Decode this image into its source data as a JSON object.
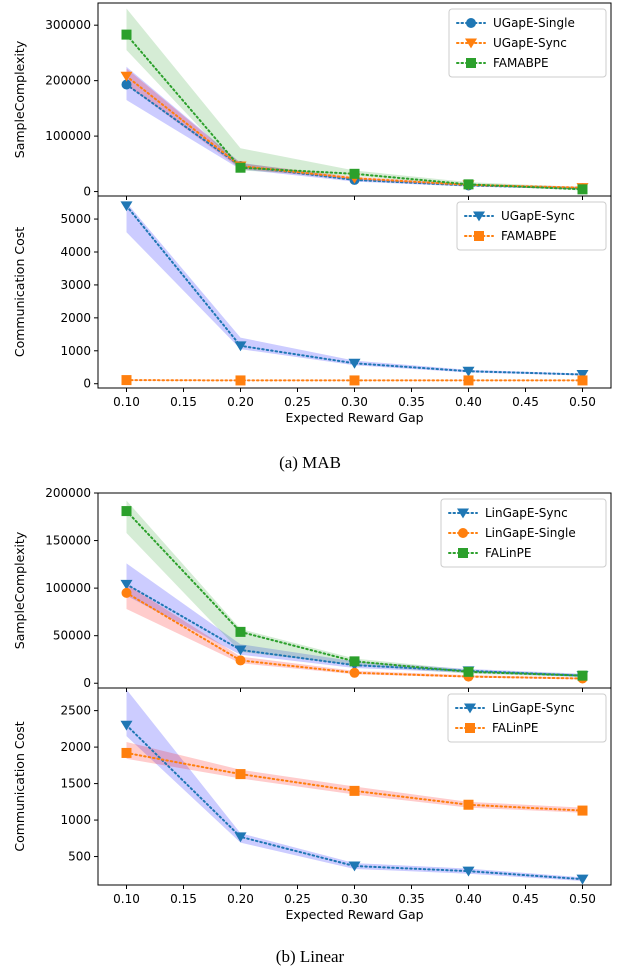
{
  "captions": {
    "a": "(a) MAB",
    "b": "(b) Linear"
  },
  "chart_data": [
    {
      "type": "line",
      "ylabel": "SampleComplexity",
      "xlabel": "",
      "x": [
        0.1,
        0.2,
        0.3,
        0.4,
        0.5
      ],
      "xlim": [
        0.075,
        0.525
      ],
      "ylim": [
        -8000,
        340000
      ],
      "yticks": [
        0,
        100000,
        200000,
        300000
      ],
      "ytick_labels": [
        "0",
        "100000",
        "200000",
        "300000"
      ],
      "grid": false,
      "legend": "top-right",
      "series": [
        {
          "name": "UGapE-Single",
          "color": "#1f77b4",
          "band_color": "#0000ff",
          "marker": "circle",
          "values": [
            193000,
            46000,
            21000,
            11000,
            6000
          ],
          "lower": [
            165000,
            40000,
            18000,
            9000,
            4000
          ],
          "upper": [
            225000,
            52000,
            24000,
            13000,
            8000
          ]
        },
        {
          "name": "UGapE-Sync",
          "color": "#ff7f0e",
          "band_color": "#ff0000",
          "marker": "triangle-down",
          "values": [
            208000,
            46000,
            24000,
            12000,
            7000
          ],
          "lower": [
            192000,
            41000,
            21000,
            10000,
            5000
          ],
          "upper": [
            222000,
            51000,
            27000,
            14000,
            9000
          ]
        },
        {
          "name": "FAMABPE",
          "color": "#2ca02c",
          "band_color": "#2ca02c",
          "marker": "square",
          "values": [
            283000,
            43000,
            32000,
            13000,
            4000
          ],
          "lower": [
            255000,
            38000,
            28000,
            11000,
            2000
          ],
          "upper": [
            330000,
            78000,
            38000,
            17000,
            8000
          ]
        }
      ]
    },
    {
      "type": "line",
      "ylabel": "Communication Cost",
      "xlabel": "Expected Reward Gap",
      "x": [
        0.1,
        0.2,
        0.3,
        0.4,
        0.5
      ],
      "xlim": [
        0.075,
        0.525
      ],
      "ylim": [
        -130,
        5700
      ],
      "yticks": [
        0,
        1000,
        2000,
        3000,
        4000,
        5000
      ],
      "ytick_labels": [
        "0",
        "1000",
        "2000",
        "3000",
        "4000",
        "5000"
      ],
      "xticks": [
        0.1,
        0.15,
        0.2,
        0.25,
        0.3,
        0.35,
        0.4,
        0.45,
        0.5
      ],
      "xtick_labels": [
        "0.10",
        "0.15",
        "0.20",
        "0.25",
        "0.30",
        "0.35",
        "0.40",
        "0.45",
        "0.50"
      ],
      "grid": false,
      "legend": "top-right",
      "series": [
        {
          "name": "UGapE-Sync",
          "color": "#1f77b4",
          "band_color": "#0000ff",
          "marker": "triangle-down",
          "values": [
            5400,
            1150,
            620,
            380,
            280
          ],
          "lower": [
            4600,
            1050,
            560,
            340,
            250
          ],
          "upper": [
            5500,
            1400,
            700,
            420,
            310
          ]
        },
        {
          "name": "FAMABPE",
          "color": "#ff7f0e",
          "band_color": "#ff0000",
          "marker": "square",
          "values": [
            110,
            100,
            100,
            100,
            100
          ],
          "lower": [
            90,
            90,
            90,
            90,
            90
          ],
          "upper": [
            130,
            120,
            120,
            120,
            120
          ]
        }
      ]
    },
    {
      "type": "line",
      "ylabel": "SampleComplexity",
      "xlabel": "",
      "x": [
        0.1,
        0.2,
        0.3,
        0.4,
        0.5
      ],
      "xlim": [
        0.075,
        0.525
      ],
      "ylim": [
        -5000,
        200000
      ],
      "yticks": [
        0,
        50000,
        100000,
        150000,
        200000
      ],
      "ytick_labels": [
        "0",
        "50000",
        "100000",
        "150000",
        "200000"
      ],
      "grid": false,
      "legend": "top-right",
      "series": [
        {
          "name": "LinGapE-Sync",
          "color": "#1f77b4",
          "band_color": "#0000ff",
          "marker": "triangle-down",
          "values": [
            104000,
            35000,
            19000,
            13000,
            8000
          ],
          "lower": [
            92000,
            30000,
            16000,
            11000,
            6500
          ],
          "upper": [
            126000,
            41000,
            23000,
            15000,
            10000
          ]
        },
        {
          "name": "LinGapE-Single",
          "color": "#ff7f0e",
          "band_color": "#ff0000",
          "marker": "circle",
          "values": [
            95000,
            24000,
            11000,
            7000,
            5000
          ],
          "lower": [
            78000,
            21000,
            9500,
            6000,
            4000
          ],
          "upper": [
            104000,
            28000,
            13000,
            8500,
            6000
          ]
        },
        {
          "name": "FALinPE",
          "color": "#2ca02c",
          "band_color": "#2ca02c",
          "marker": "square",
          "values": [
            181000,
            54000,
            23000,
            12000,
            8000
          ],
          "lower": [
            158000,
            33000,
            19000,
            10000,
            6500
          ],
          "upper": [
            192000,
            57000,
            26000,
            14000,
            9500
          ]
        }
      ]
    },
    {
      "type": "line",
      "ylabel": "Communication Cost",
      "xlabel": "Expected Reward Gap",
      "x": [
        0.1,
        0.2,
        0.3,
        0.4,
        0.5
      ],
      "xlim": [
        0.075,
        0.525
      ],
      "ylim": [
        110,
        2810
      ],
      "yticks": [
        500,
        1000,
        1500,
        2000,
        2500
      ],
      "ytick_labels": [
        "500",
        "1000",
        "1500",
        "2000",
        "2500"
      ],
      "xticks": [
        0.1,
        0.15,
        0.2,
        0.25,
        0.3,
        0.35,
        0.4,
        0.45,
        0.5
      ],
      "xtick_labels": [
        "0.10",
        "0.15",
        "0.20",
        "0.25",
        "0.30",
        "0.35",
        "0.40",
        "0.45",
        "0.50"
      ],
      "grid": false,
      "legend": "top-right",
      "series": [
        {
          "name": "LinGapE-Sync",
          "color": "#1f77b4",
          "band_color": "#0000ff",
          "marker": "triangle-down",
          "values": [
            2300,
            770,
            370,
            300,
            190
          ],
          "lower": [
            2150,
            690,
            330,
            265,
            165
          ],
          "upper": [
            2790,
            820,
            410,
            335,
            215
          ]
        },
        {
          "name": "FALinPE",
          "color": "#ff7f0e",
          "band_color": "#ff0000",
          "marker": "square",
          "values": [
            1920,
            1630,
            1400,
            1210,
            1130
          ],
          "lower": [
            1840,
            1570,
            1350,
            1170,
            1100
          ],
          "upper": [
            2070,
            1690,
            1460,
            1250,
            1170
          ]
        }
      ]
    }
  ]
}
